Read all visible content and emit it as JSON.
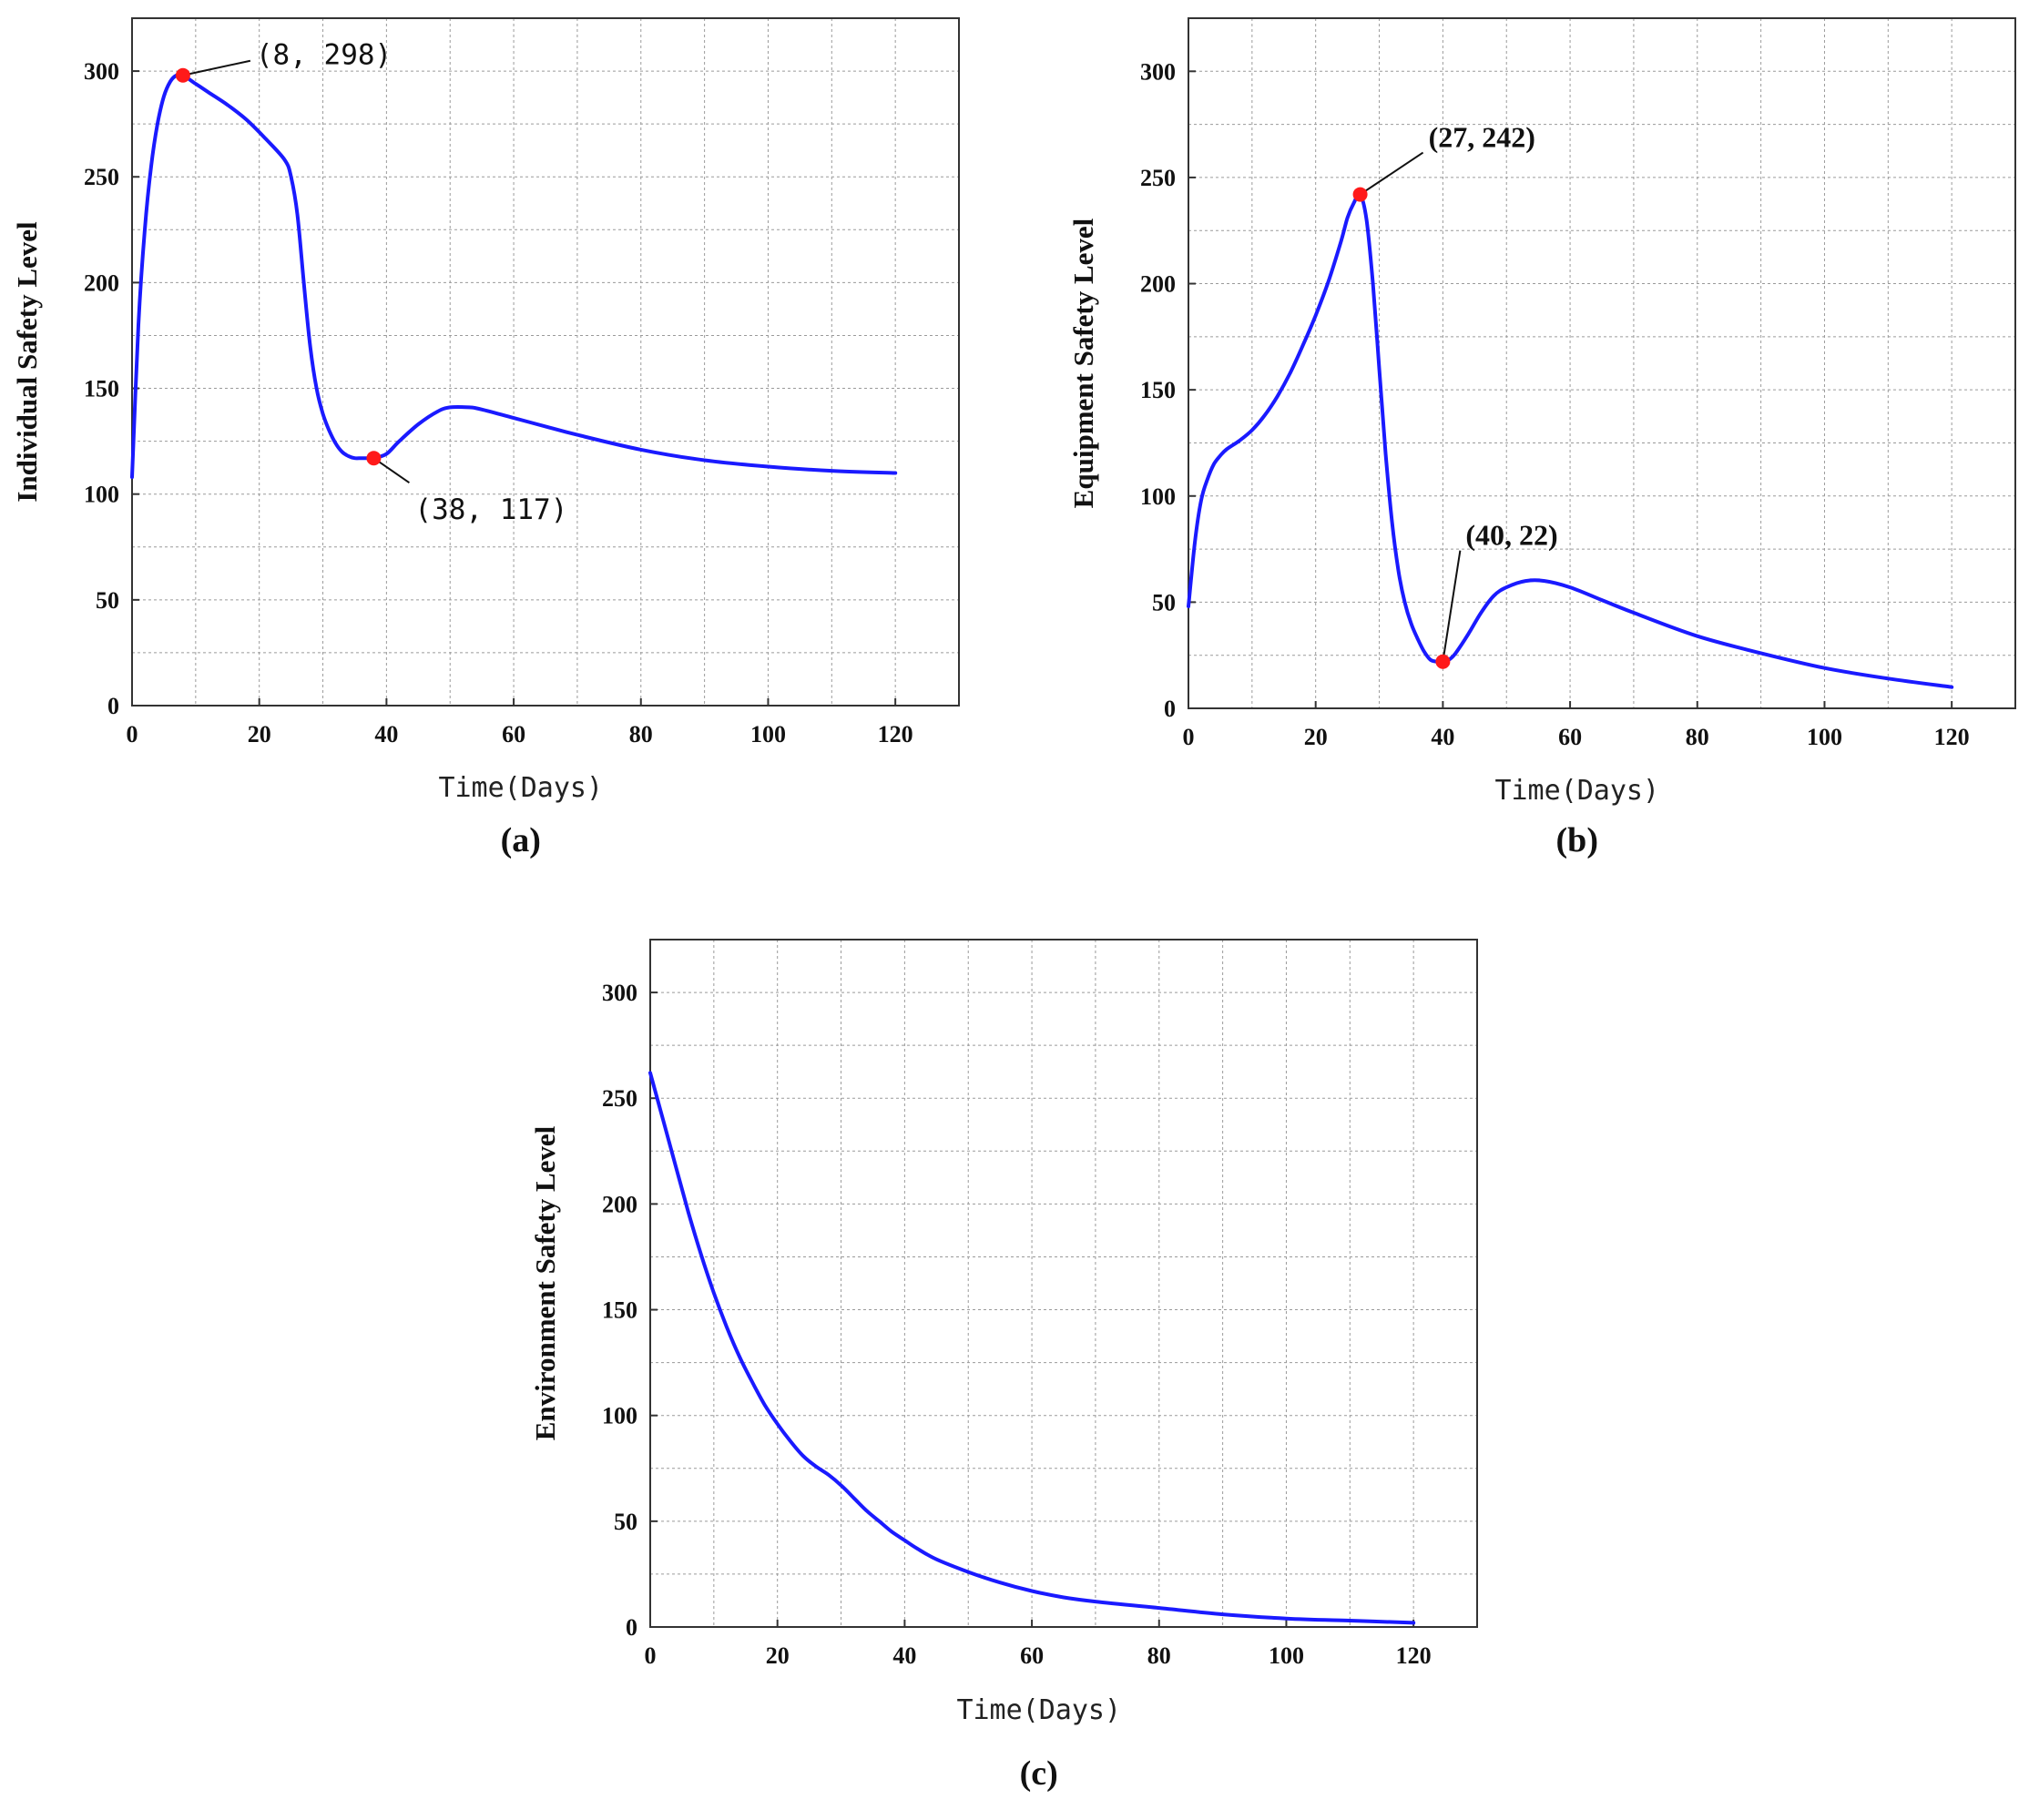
{
  "chart_data": [
    {
      "type": "line",
      "caption": "(a)",
      "title": "",
      "xlabel": "Time(Days)",
      "ylabel": "Individual Safety Level",
      "xlim": [
        0,
        130
      ],
      "ylim": [
        0,
        325
      ],
      "xticks": [
        0,
        20,
        40,
        60,
        80,
        100,
        120
      ],
      "yticks": [
        0,
        50,
        100,
        150,
        200,
        250,
        300
      ],
      "grid": true,
      "line_color": "#1a1aff",
      "marker_color": "#ff1a1a",
      "series": [
        {
          "x": [
            0,
            1,
            2,
            3,
            4,
            5,
            6,
            7,
            8,
            10,
            12,
            15,
            18,
            21,
            24,
            25,
            26,
            27,
            28,
            29,
            30,
            31,
            32,
            33,
            34,
            35,
            36,
            37,
            38,
            40,
            42,
            45,
            48,
            50,
            53,
            55,
            60,
            65,
            70,
            80,
            90,
            100,
            110,
            120
          ],
          "y": [
            108,
            180,
            225,
            255,
            275,
            288,
            295,
            298,
            298,
            294,
            290,
            284,
            277,
            268,
            258,
            250,
            232,
            200,
            170,
            150,
            138,
            130,
            124,
            120,
            118,
            117,
            117,
            117,
            117,
            119,
            125,
            133,
            139,
            141,
            141,
            140,
            136,
            132,
            128,
            121,
            116,
            113,
            111,
            110
          ]
        }
      ],
      "annotations": [
        {
          "x": 8,
          "y": 298,
          "text": "(8,  298)"
        },
        {
          "x": 38,
          "y": 117,
          "text": "(38,  117)"
        }
      ]
    },
    {
      "type": "line",
      "caption": "(b)",
      "title": "",
      "xlabel": "Time(Days)",
      "ylabel": "Equipment Safety Level",
      "xlim": [
        0,
        130
      ],
      "ylim": [
        0,
        325
      ],
      "xticks": [
        0,
        20,
        40,
        60,
        80,
        100,
        120
      ],
      "yticks": [
        0,
        50,
        100,
        150,
        200,
        250,
        300
      ],
      "grid": true,
      "line_color": "#1a1aff",
      "marker_color": "#ff1a1a",
      "series": [
        {
          "x": [
            0,
            1,
            2,
            3,
            4,
            5,
            6,
            8,
            10,
            12,
            14,
            16,
            18,
            20,
            22,
            24,
            25,
            26,
            27,
            28,
            29,
            30,
            31,
            32,
            33,
            34,
            35,
            36,
            37,
            38,
            39,
            40,
            41,
            42,
            44,
            46,
            48,
            50,
            53,
            56,
            60,
            65,
            70,
            80,
            90,
            100,
            110,
            120
          ],
          "y": [
            48,
            78,
            98,
            108,
            115,
            119,
            122,
            126,
            131,
            138,
            147,
            158,
            171,
            185,
            201,
            220,
            231,
            238,
            242,
            230,
            200,
            160,
            120,
            88,
            65,
            50,
            40,
            33,
            27,
            23,
            22,
            22,
            23,
            26,
            35,
            45,
            53,
            57,
            60,
            60,
            57,
            51,
            45,
            34,
            26,
            19,
            14,
            10
          ]
        }
      ],
      "annotations": [
        {
          "x": 27,
          "y": 242,
          "text": "(27, 242)"
        },
        {
          "x": 40,
          "y": 22,
          "text": "(40, 22)"
        }
      ]
    },
    {
      "type": "line",
      "caption": "(c)",
      "title": "",
      "xlabel": "Time(Days)",
      "ylabel": "Environment Safety Level",
      "xlim": [
        0,
        130
      ],
      "ylim": [
        0,
        325
      ],
      "xticks": [
        0,
        20,
        40,
        60,
        80,
        100,
        120
      ],
      "yticks": [
        0,
        50,
        100,
        150,
        200,
        250,
        300
      ],
      "grid": true,
      "line_color": "#1a1aff",
      "series": [
        {
          "x": [
            0,
            2,
            4,
            6,
            8,
            10,
            12,
            14,
            16,
            18,
            20,
            22,
            24,
            26,
            28,
            30,
            32,
            34,
            36,
            38,
            40,
            42,
            45,
            50,
            55,
            60,
            65,
            70,
            80,
            90,
            100,
            110,
            120
          ],
          "y": [
            262,
            240,
            218,
            196,
            176,
            158,
            142,
            128,
            116,
            105,
            96,
            88,
            81,
            76,
            72,
            67,
            61,
            55,
            50,
            45,
            41,
            37,
            32,
            26,
            21,
            17,
            14,
            12,
            9,
            6,
            4,
            3,
            2
          ]
        }
      ],
      "annotations": []
    }
  ]
}
